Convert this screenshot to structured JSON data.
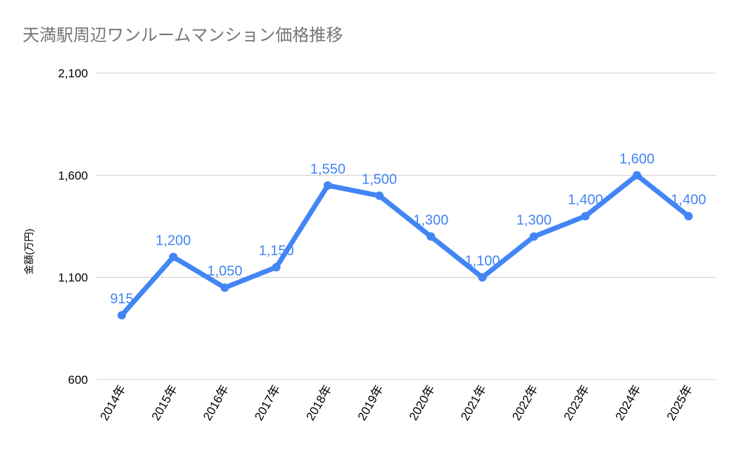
{
  "chart_data": {
    "type": "line",
    "title": "天満駅周辺ワンルームマンション価格推移",
    "xlabel": "",
    "ylabel": "金額(万円)",
    "categories": [
      "2014年",
      "2015年",
      "2016年",
      "2017年",
      "2018年",
      "2019年",
      "2020年",
      "2021年",
      "2022年",
      "2023年",
      "2024年",
      "2025年"
    ],
    "series": [
      {
        "values": [
          915,
          1200,
          1050,
          1150,
          1550,
          1500,
          1300,
          1100,
          1300,
          1400,
          1600,
          1400
        ],
        "value_labels": [
          "915",
          "1,200",
          "1,050",
          "1,150",
          "1,550",
          "1,500",
          "1,300",
          "1,100",
          "1,300",
          "1,400",
          "1,600",
          "1,400"
        ]
      }
    ],
    "ylim": [
      600,
      2100
    ],
    "yticks": [
      600,
      1100,
      1600,
      2100
    ],
    "ytick_labels": [
      "600",
      "1,100",
      "1,600",
      "2,100"
    ],
    "grid": true,
    "legend": "none",
    "colors": {
      "line": "#4285f4",
      "data_label": "#4285f4",
      "grid": "#cccccc",
      "axis_text": "#000000",
      "title": "#757575"
    }
  }
}
